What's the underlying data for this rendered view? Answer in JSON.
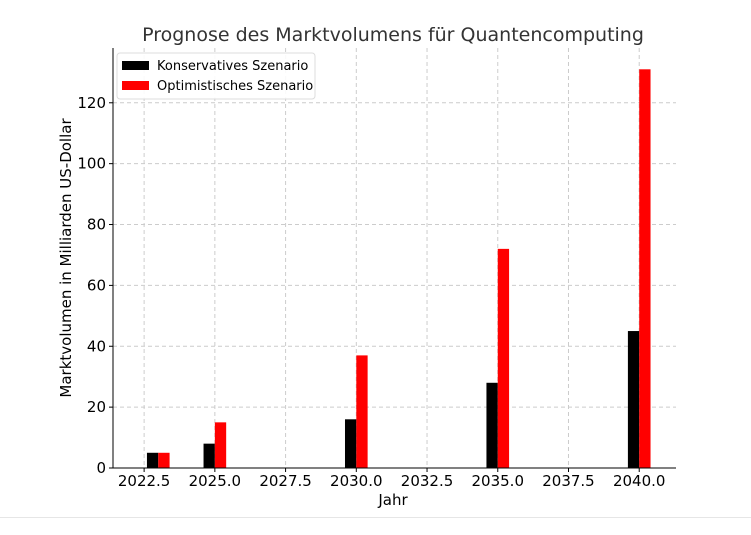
{
  "chart_data": {
    "type": "bar",
    "title": "Prognose des Marktvolumens für Quantencomputing",
    "xlabel": "Jahr",
    "ylabel": "Marktvolumen in Milliarden US-Dollar",
    "x": [
      2023,
      2025,
      2030,
      2035,
      2040
    ],
    "xlim": [
      2021.4,
      2041.3
    ],
    "ylim": [
      0,
      138
    ],
    "xticks": [
      2022.5,
      2025.0,
      2027.5,
      2030.0,
      2032.5,
      2035.0,
      2037.5,
      2040.0
    ],
    "xtick_labels": [
      "2022.5",
      "2025.0",
      "2027.5",
      "2030.0",
      "2032.5",
      "2035.0",
      "2037.5",
      "2040.0"
    ],
    "yticks": [
      0,
      20,
      40,
      60,
      80,
      100,
      120
    ],
    "ytick_labels": [
      "0",
      "20",
      "40",
      "60",
      "80",
      "100",
      "120"
    ],
    "bar_width_years": 0.4,
    "grid": true,
    "legend_position": "top-left",
    "series": [
      {
        "name": "Konservatives Szenario",
        "color": "#000000",
        "values": [
          5,
          8,
          16,
          28,
          45
        ]
      },
      {
        "name": "Optimistisches Szenario",
        "color": "#ff0000",
        "values": [
          5,
          15,
          37,
          72,
          131
        ]
      }
    ]
  }
}
